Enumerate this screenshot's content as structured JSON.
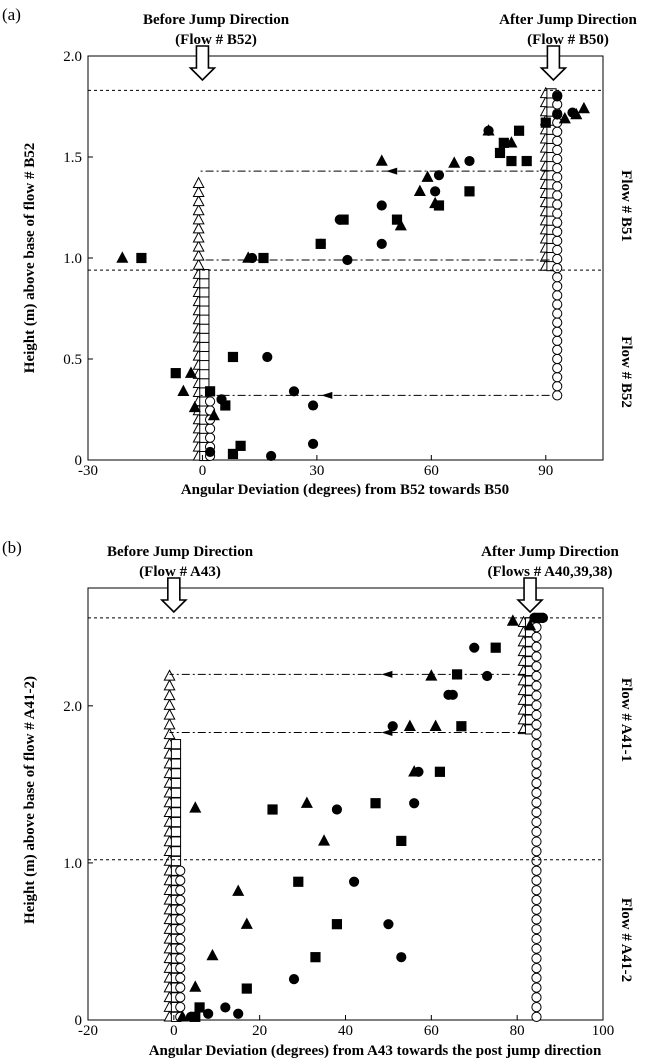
{
  "chart_data": [
    {
      "type": "scatter",
      "panel_label": "(a)",
      "xlabel": "Angular Deviation (degrees) from B52 towards B50",
      "ylabel": "Height (m) above base of flow # B52",
      "xlim": [
        -30,
        105
      ],
      "ylim": [
        0,
        2.0
      ],
      "x_ticks": [
        "-30",
        "0",
        "30",
        "60",
        "90"
      ],
      "y_ticks": [
        "0",
        "0.5",
        "1.0",
        "1.5",
        "2.0"
      ],
      "before_label": [
        "Before Jump Direction",
        "(Flow # B52)"
      ],
      "after_label": [
        "After Jump Direction",
        "(Flow # B50)"
      ],
      "before_arrow_x": 0,
      "after_arrow_x": 92,
      "dashed_levels": [
        1.83,
        0.94
      ],
      "flow_labels": [
        {
          "text": "Flow # B51",
          "y_center": 1.38
        },
        {
          "text": "Flow # B52",
          "y_center": 0.47
        }
      ],
      "dashdot_arrows": [
        {
          "y": 1.43,
          "x_from": 91,
          "x_to": -1,
          "arrow_at": 50
        },
        {
          "y": 0.99,
          "x_from": 91,
          "x_to": -1,
          "arrow_at": 38
        },
        {
          "y": 0.32,
          "x_from": 91,
          "x_to": -1,
          "arrow_at": 33
        }
      ],
      "ref_columns": [
        {
          "name": "before_triangles",
          "marker": "triangle-open",
          "x": -1,
          "y_min": 0.02,
          "y_max": 1.41,
          "step": 0.045
        },
        {
          "name": "before_squares",
          "marker": "square-open",
          "x": 0.5,
          "y_min": 0.02,
          "y_max": 0.92,
          "step": 0.045
        },
        {
          "name": "before_circles",
          "marker": "circle-open",
          "x": 2,
          "y_min": 0.02,
          "y_max": 0.3,
          "step": 0.045
        },
        {
          "name": "after_triangles",
          "marker": "triangle-open",
          "x": 90,
          "y_min": 0.96,
          "y_max": 1.83,
          "step": 0.045
        },
        {
          "name": "after_squares",
          "marker": "square-open",
          "x": 91.5,
          "y_min": 0.96,
          "y_max": 1.83,
          "step": 0.045
        },
        {
          "name": "after_circles",
          "marker": "circle-open",
          "x": 93,
          "y_min": 0.32,
          "y_max": 1.83,
          "step": 0.045
        }
      ],
      "series": [
        {
          "marker": "circle-filled",
          "points": [
            [
              93,
              1.8
            ],
            [
              93,
              1.71
            ],
            [
              97,
              1.72
            ],
            [
              75,
              1.63
            ],
            [
              70,
              1.48
            ],
            [
              62,
              1.41
            ],
            [
              61,
              1.33
            ],
            [
              47,
              1.26
            ],
            [
              36,
              1.19
            ],
            [
              47,
              1.07
            ],
            [
              31,
              1.07
            ],
            [
              38,
              0.99
            ],
            [
              13,
              1.0
            ],
            [
              17,
              0.51
            ],
            [
              24,
              0.34
            ],
            [
              29,
              0.27
            ],
            [
              5,
              0.3
            ],
            [
              29,
              0.08
            ],
            [
              18,
              0.02
            ],
            [
              2,
              0.04
            ]
          ]
        },
        {
          "marker": "square-filled",
          "points": [
            [
              83,
              1.63
            ],
            [
              79,
              1.57
            ],
            [
              85,
              1.48
            ],
            [
              81,
              1.48
            ],
            [
              90,
              1.67
            ],
            [
              78,
              1.52
            ],
            [
              70,
              1.33
            ],
            [
              62,
              1.26
            ],
            [
              51,
              1.19
            ],
            [
              37,
              1.19
            ],
            [
              31,
              1.07
            ],
            [
              16,
              1.0
            ],
            [
              -16,
              1.0
            ],
            [
              8,
              0.51
            ],
            [
              -7,
              0.43
            ],
            [
              2,
              0.34
            ],
            [
              6,
              0.27
            ],
            [
              10,
              0.07
            ],
            [
              8,
              0.03
            ]
          ]
        },
        {
          "marker": "triangle-filled",
          "points": [
            [
              100,
              1.74
            ],
            [
              98,
              1.71
            ],
            [
              95,
              1.69
            ],
            [
              75,
              1.63
            ],
            [
              81,
              1.57
            ],
            [
              66,
              1.47
            ],
            [
              59,
              1.4
            ],
            [
              47,
              1.48
            ],
            [
              57,
              1.33
            ],
            [
              61,
              1.27
            ],
            [
              52,
              1.16
            ],
            [
              12,
              1.0
            ],
            [
              -21,
              1.0
            ],
            [
              -2,
              0.26
            ],
            [
              -5,
              0.34
            ],
            [
              -3,
              0.43
            ],
            [
              3,
              0.22
            ]
          ]
        }
      ]
    },
    {
      "type": "scatter",
      "panel_label": "(b)",
      "xlabel": "Angular Deviation (degrees) from A43 towards the post jump direction",
      "ylabel": "Height (m) above base of flow # A41-2)",
      "xlim": [
        -20,
        100
      ],
      "ylim": [
        0,
        2.75
      ],
      "x_ticks": [
        "-20",
        "0",
        "20",
        "40",
        "60",
        "80",
        "100"
      ],
      "y_ticks": [
        "0",
        "1.0",
        "2.0"
      ],
      "before_label": [
        "Before Jump Direction",
        "(Flow # A43)"
      ],
      "after_label": [
        "After Jump Direction",
        "(Flows # A40,39,38)"
      ],
      "before_arrow_x": 0,
      "after_arrow_x": 83,
      "dashed_levels": [
        2.56,
        1.02
      ],
      "flow_labels": [
        {
          "text": "Flow # A41-1",
          "y_center": 1.78
        },
        {
          "text": "Flow # A41-2",
          "y_center": 0.5
        }
      ],
      "dashdot_arrows": [
        {
          "y": 2.2,
          "x_from": 82,
          "x_to": -1,
          "arrow_at": 50
        },
        {
          "y": 1.83,
          "x_from": 82,
          "x_to": -1,
          "arrow_at": 50
        }
      ],
      "ref_columns": [
        {
          "name": "before_triangles",
          "marker": "triangle-open",
          "x": -1,
          "y_min": 0.02,
          "y_max": 2.2,
          "step": 0.062
        },
        {
          "name": "before_squares",
          "marker": "square-open",
          "x": 0.5,
          "y_min": 0.02,
          "y_max": 1.8,
          "step": 0.062
        },
        {
          "name": "before_circles",
          "marker": "circle-open",
          "x": 1.5,
          "y_min": 0.02,
          "y_max": 1.0,
          "step": 0.062
        },
        {
          "name": "after_triangles",
          "marker": "triangle-open",
          "x": 81.5,
          "y_min": 1.85,
          "y_max": 2.56,
          "step": 0.062
        },
        {
          "name": "after_squares",
          "marker": "square-open",
          "x": 83,
          "y_min": 1.85,
          "y_max": 2.56,
          "step": 0.062
        },
        {
          "name": "after_circles",
          "marker": "circle-open",
          "x": 84.5,
          "y_min": 0.02,
          "y_max": 2.56,
          "step": 0.062
        }
      ],
      "series": [
        {
          "marker": "circle-filled",
          "points": [
            [
              84,
              2.56
            ],
            [
              86,
              2.56
            ],
            [
              70,
              2.37
            ],
            [
              73,
              2.19
            ],
            [
              65,
              2.07
            ],
            [
              64,
              2.07
            ],
            [
              51,
              1.87
            ],
            [
              57,
              1.58
            ],
            [
              56,
              1.38
            ],
            [
              38,
              1.34
            ],
            [
              42,
              0.88
            ],
            [
              50,
              0.61
            ],
            [
              53,
              0.4
            ],
            [
              28,
              0.26
            ],
            [
              12,
              0.08
            ],
            [
              15,
              0.04
            ],
            [
              8,
              0.04
            ],
            [
              4,
              0.02
            ]
          ]
        },
        {
          "marker": "square-filled",
          "points": [
            [
              85,
              2.56
            ],
            [
              75,
              2.37
            ],
            [
              66,
              2.2
            ],
            [
              67,
              1.87
            ],
            [
              62,
              1.58
            ],
            [
              47,
              1.38
            ],
            [
              53,
              1.14
            ],
            [
              23,
              1.34
            ],
            [
              29,
              0.88
            ],
            [
              38,
              0.61
            ],
            [
              33,
              0.4
            ],
            [
              17,
              0.2
            ],
            [
              6,
              0.08
            ],
            [
              5,
              0.02
            ]
          ]
        },
        {
          "marker": "triangle-filled",
          "points": [
            [
              79,
              2.54
            ],
            [
              83,
              2.51
            ],
            [
              60,
              2.19
            ],
            [
              61,
              1.87
            ],
            [
              55,
              1.87
            ],
            [
              56,
              1.58
            ],
            [
              31,
              1.38
            ],
            [
              35,
              1.14
            ],
            [
              5,
              1.35
            ],
            [
              15,
              0.82
            ],
            [
              17,
              0.61
            ],
            [
              9,
              0.41
            ],
            [
              5,
              0.21
            ],
            [
              2,
              0.02
            ]
          ]
        }
      ]
    }
  ]
}
